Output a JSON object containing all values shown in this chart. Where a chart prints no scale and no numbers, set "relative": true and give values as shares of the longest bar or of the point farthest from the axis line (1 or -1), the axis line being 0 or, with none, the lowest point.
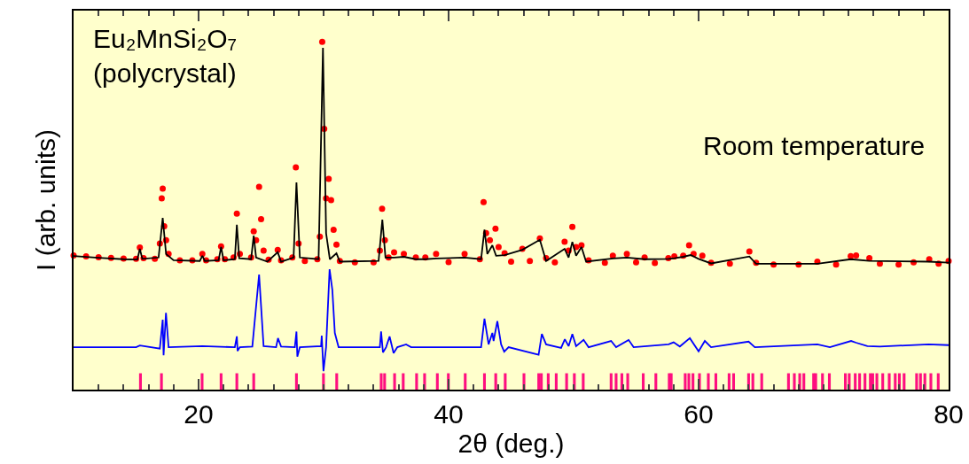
{
  "chart_data": {
    "type": "line",
    "relative": true,
    "xlabel": "2θ (deg.)",
    "ylabel": "I (arb. units)",
    "xlim": [
      10,
      80
    ],
    "xticks": [
      20,
      40,
      60,
      80
    ],
    "grid": false,
    "annotations": [
      "Eu₂MnSi₂O₇\n(polycrystal)",
      "Room temperature"
    ],
    "series": [
      {
        "type": "scatter",
        "marker": "circle",
        "color": "#ff0000",
        "x": [
          10,
          11,
          12,
          13,
          14,
          15,
          15.3,
          15.6,
          16.5,
          16.9,
          17.05,
          17.13,
          17.25,
          17.4,
          17.6,
          18.5,
          19.5,
          20.3,
          20.6,
          21.5,
          21.8,
          22.1,
          22.8,
          23.06,
          23.3,
          24.2,
          24.41,
          24.6,
          24.84,
          25.0,
          25.2,
          25.6,
          26.33,
          26.6,
          27.5,
          27.78,
          28.0,
          28.5,
          29.5,
          29.7,
          29.89,
          30.05,
          30.2,
          30.41,
          30.6,
          30.8,
          31.03,
          31.3,
          32.5,
          34.0,
          34.5,
          34.68,
          34.9,
          35.2,
          35.64,
          36.42,
          37.38,
          38.14,
          39.0,
          40,
          41.28,
          42.5,
          42.8,
          43.0,
          43.3,
          43.75,
          44.0,
          44.48,
          45,
          45.9,
          46.5,
          47.3,
          47.8,
          48.5,
          49.28,
          49.6,
          49.9,
          50.2,
          50.63,
          51.2,
          52.5,
          53.14,
          54.26,
          55.0,
          55.68,
          56.5,
          57.58,
          58.06,
          58.77,
          59.24,
          59.6,
          60.3,
          61,
          62.5,
          64.06,
          64.6,
          66,
          68,
          69.5,
          71,
          72.17,
          72.6,
          73.66,
          74.5,
          76,
          77.2,
          78.45,
          79.2,
          80
        ],
        "values": [
          0.386,
          0.383,
          0.381,
          0.379,
          0.377,
          0.376,
          0.409,
          0.378,
          0.376,
          0.42,
          0.55,
          0.578,
          0.47,
          0.43,
          0.39,
          0.372,
          0.372,
          0.39,
          0.372,
          0.375,
          0.412,
          0.375,
          0.38,
          0.506,
          0.39,
          0.38,
          0.455,
          0.43,
          0.583,
          0.49,
          0.4,
          0.374,
          0.402,
          0.372,
          0.38,
          0.639,
          0.42,
          0.37,
          0.375,
          0.44,
          1.0,
          0.75,
          0.55,
          0.606,
          0.545,
          0.46,
          0.417,
          0.37,
          0.366,
          0.366,
          0.4,
          0.52,
          0.43,
          0.38,
          0.395,
          0.39,
          0.38,
          0.38,
          0.39,
          0.367,
          0.39,
          0.375,
          0.539,
          0.45,
          0.43,
          0.463,
          0.41,
          0.392,
          0.368,
          0.405,
          0.37,
          0.435,
          0.378,
          0.366,
          0.425,
          0.4,
          0.468,
          0.41,
          0.415,
          0.372,
          0.365,
          0.385,
          0.39,
          0.366,
          0.38,
          0.364,
          0.378,
          0.383,
          0.385,
          0.415,
          0.39,
          0.385,
          0.365,
          0.362,
          0.397,
          0.365,
          0.36,
          0.36,
          0.368,
          0.36,
          0.384,
          0.386,
          0.378,
          0.362,
          0.36,
          0.366,
          0.375,
          0.362,
          0.37
        ]
      },
      {
        "marker": "none",
        "line_style": "solid",
        "color": "#000000",
        "x": [
          10,
          12,
          14,
          15.1,
          15.3,
          15.5,
          16.8,
          17.13,
          17.4,
          18,
          20.1,
          20.3,
          20.5,
          21.6,
          21.8,
          22.0,
          22.9,
          23.06,
          23.25,
          24.2,
          24.41,
          24.6,
          25.5,
          26.33,
          26.6,
          27.6,
          27.83,
          28.1,
          29.6,
          29.95,
          30.2,
          30.5,
          31.03,
          31.3,
          34.4,
          34.7,
          34.95,
          35.64,
          36.42,
          37.38,
          38.14,
          39.0,
          41.28,
          42.6,
          42.87,
          43.1,
          43.5,
          43.8,
          44.48,
          45.9,
          47.3,
          47.8,
          49.28,
          49.6,
          49.9,
          50.2,
          50.63,
          51.0,
          53.14,
          54.26,
          55.68,
          57.6,
          58.06,
          58.77,
          59.36,
          60.0,
          61,
          64.06,
          64.6,
          69.5,
          72.17,
          73.66,
          78.45,
          80
        ],
        "values": [
          0.384,
          0.379,
          0.375,
          0.374,
          0.405,
          0.376,
          0.38,
          0.494,
          0.39,
          0.372,
          0.37,
          0.385,
          0.37,
          0.372,
          0.41,
          0.372,
          0.375,
          0.474,
          0.378,
          0.375,
          0.443,
          0.38,
          0.368,
          0.395,
          0.368,
          0.38,
          0.596,
          0.38,
          0.375,
          0.983,
          0.45,
          0.375,
          0.392,
          0.368,
          0.37,
          0.489,
          0.38,
          0.38,
          0.382,
          0.375,
          0.375,
          0.377,
          0.38,
          0.375,
          0.46,
          0.39,
          0.415,
          0.385,
          0.387,
          0.402,
          0.431,
          0.37,
          0.405,
          0.38,
          0.425,
          0.385,
          0.41,
          0.368,
          0.377,
          0.38,
          0.375,
          0.376,
          0.378,
          0.382,
          0.387,
          0.376,
          0.363,
          0.383,
          0.362,
          0.362,
          0.375,
          0.37,
          0.368,
          0.365
        ]
      },
      {
        "marker": "none",
        "line_style": "solid",
        "color": "#0000ff",
        "x": [
          10,
          15,
          15.3,
          16.9,
          17.13,
          17.2,
          17.39,
          17.6,
          20.3,
          22.9,
          23.06,
          23.12,
          23.3,
          24.3,
          24.84,
          25.2,
          26.2,
          26.35,
          26.6,
          27.7,
          27.83,
          27.9,
          28.1,
          29.8,
          29.85,
          29.99,
          30.2,
          30.48,
          30.7,
          30.9,
          31.2,
          34.5,
          34.6,
          34.75,
          35.0,
          35.28,
          35.6,
          35.9,
          36.6,
          37,
          42.6,
          42.87,
          43.2,
          43.5,
          43.6,
          43.9,
          44.2,
          44.45,
          44.8,
          47.2,
          47.46,
          47.8,
          49.0,
          49.3,
          49.6,
          49.9,
          50.2,
          50.8,
          51.2,
          53.0,
          53.4,
          54.4,
          54.8,
          57.6,
          58.0,
          58.5,
          59.3,
          60.0,
          60.5,
          61.0,
          64.0,
          64.5,
          69.5,
          70.5,
          72.2,
          72.6,
          73.5,
          74.5,
          78.4,
          80
        ],
        "values": [
          0.122,
          0.122,
          0.127,
          0.118,
          0.201,
          0.099,
          0.221,
          0.122,
          0.125,
          0.122,
          0.153,
          0.111,
          0.122,
          0.124,
          0.331,
          0.125,
          0.122,
          0.148,
          0.124,
          0.122,
          0.167,
          0.095,
          0.122,
          0.125,
          0.155,
          0.053,
          0.122,
          0.346,
          0.287,
          0.163,
          0.122,
          0.122,
          0.167,
          0.107,
          0.122,
          0.153,
          0.105,
          0.122,
          0.13,
          0.122,
          0.122,
          0.204,
          0.13,
          0.163,
          0.14,
          0.197,
          0.13,
          0.109,
          0.122,
          0.1,
          0.16,
          0.13,
          0.12,
          0.145,
          0.125,
          0.16,
          0.125,
          0.143,
          0.122,
          0.14,
          0.122,
          0.143,
          0.122,
          0.13,
          0.136,
          0.124,
          0.148,
          0.11,
          0.14,
          0.122,
          0.138,
          0.122,
          0.13,
          0.122,
          0.14,
          0.135,
          0.125,
          0.124,
          0.13,
          0.128
        ]
      },
      {
        "type": "bar",
        "color": "#ff0f7f",
        "x": [
          15.35,
          17.03,
          20.28,
          21.8,
          23.06,
          24.41,
          27.83,
          29.99,
          31.05,
          34.61,
          34.88,
          35.68,
          36.37,
          37.44,
          38.08,
          39.1,
          39.98,
          41.33,
          42.87,
          43.77,
          44.53,
          46.03,
          47.21,
          47.42,
          47.97,
          48.61,
          49.44,
          50.06,
          50.77,
          53.0,
          53.4,
          53.86,
          54.33,
          55.57,
          56.58,
          57.65,
          57.81,
          58.93,
          59.22,
          59.55,
          60.07,
          60.78,
          61.38,
          62.44,
          62.8,
          64.0,
          64.34,
          65.05,
          67.19,
          67.66,
          68.09,
          68.42,
          69.2,
          69.37,
          69.91,
          70.46,
          71.74,
          72.05,
          72.53,
          72.88,
          73.31,
          73.74,
          73.93,
          74.26,
          74.73,
          75.25,
          75.73,
          76.06,
          76.44,
          77.44,
          77.75,
          78.1,
          78.58,
          79.17
        ],
        "values": [
          0.047,
          0.047,
          0.047,
          0.047,
          0.047,
          0.047,
          0.047,
          0.047,
          0.047,
          0.047,
          0.047,
          0.047,
          0.047,
          0.047,
          0.047,
          0.047,
          0.047,
          0.047,
          0.047,
          0.047,
          0.047,
          0.047,
          0.047,
          0.047,
          0.047,
          0.047,
          0.047,
          0.047,
          0.047,
          0.047,
          0.047,
          0.047,
          0.047,
          0.047,
          0.047,
          0.047,
          0.047,
          0.047,
          0.047,
          0.047,
          0.047,
          0.047,
          0.047,
          0.047,
          0.047,
          0.047,
          0.047,
          0.047,
          0.047,
          0.047,
          0.047,
          0.047,
          0.047,
          0.047,
          0.047,
          0.047,
          0.047,
          0.047,
          0.047,
          0.047,
          0.047,
          0.047,
          0.047,
          0.047,
          0.047,
          0.047,
          0.047,
          0.047,
          0.047,
          0.047,
          0.047,
          0.047,
          0.047,
          0.047
        ]
      }
    ]
  }
}
